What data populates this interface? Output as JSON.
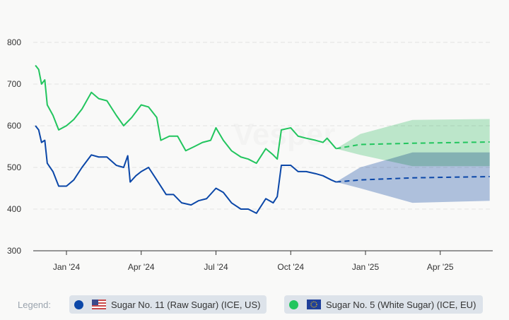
{
  "watermark": "Vesper",
  "chart_data": {
    "type": "line",
    "title": "",
    "xlabel": "",
    "ylabel": "",
    "ylim": [
      300,
      800
    ],
    "yticks": [
      "300",
      "400",
      "500",
      "600",
      "700",
      "800"
    ],
    "xticks": [
      {
        "label": "Jan '24",
        "date": "2024-01-01"
      },
      {
        "label": "Apr '24",
        "date": "2024-04-01"
      },
      {
        "label": "Jul '24",
        "date": "2024-07-01"
      },
      {
        "label": "Oct '24",
        "date": "2024-10-01"
      },
      {
        "label": "Jan '25",
        "date": "2025-01-01"
      },
      {
        "label": "Apr '25",
        "date": "2025-04-01"
      }
    ],
    "grid": true,
    "series": [
      {
        "name": "Sugar No. 11 (Raw Sugar) (ICE, US)",
        "color": "#0b47a8",
        "band_color": "#aec2e1",
        "x": [
          "2023-11-24",
          "2023-11-28",
          "2023-12-01",
          "2023-12-05",
          "2023-12-08",
          "2023-12-15",
          "2023-12-22",
          "2024-01-01",
          "2024-01-10",
          "2024-01-20",
          "2024-02-01",
          "2024-02-10",
          "2024-02-20",
          "2024-03-01",
          "2024-03-10",
          "2024-03-15",
          "2024-03-18",
          "2024-03-25",
          "2024-04-01",
          "2024-04-10",
          "2024-04-20",
          "2024-05-01",
          "2024-05-10",
          "2024-05-20",
          "2024-06-01",
          "2024-06-10",
          "2024-06-20",
          "2024-07-01",
          "2024-07-10",
          "2024-07-20",
          "2024-08-01",
          "2024-08-10",
          "2024-08-20",
          "2024-09-01",
          "2024-09-10",
          "2024-09-15",
          "2024-09-20",
          "2024-10-01",
          "2024-10-10",
          "2024-10-20",
          "2024-11-01",
          "2024-11-10",
          "2024-11-20",
          "2024-11-26"
        ],
        "values": [
          600,
          590,
          560,
          565,
          510,
          490,
          455,
          455,
          470,
          500,
          530,
          525,
          525,
          505,
          500,
          528,
          465,
          480,
          490,
          500,
          470,
          435,
          435,
          415,
          410,
          420,
          425,
          450,
          440,
          415,
          400,
          400,
          390,
          425,
          415,
          430,
          505,
          505,
          490,
          490,
          485,
          480,
          470,
          465
        ],
        "forecast": {
          "x": [
            "2024-11-26",
            "2024-12-25",
            "2025-02-28",
            "2025-05-31"
          ],
          "values": [
            465,
            470,
            475,
            478
          ],
          "upper": [
            465,
            500,
            536,
            536
          ],
          "lower": [
            465,
            450,
            415,
            420
          ]
        }
      },
      {
        "name": "Sugar No. 5 (White Sugar) (ICE, EU)",
        "color": "#22c55e",
        "band_color": "#b6e9c8",
        "x": [
          "2023-11-24",
          "2023-11-28",
          "2023-12-01",
          "2023-12-05",
          "2023-12-08",
          "2023-12-15",
          "2023-12-22",
          "2024-01-01",
          "2024-01-10",
          "2024-01-20",
          "2024-02-01",
          "2024-02-10",
          "2024-02-20",
          "2024-03-01",
          "2024-03-10",
          "2024-03-20",
          "2024-04-01",
          "2024-04-10",
          "2024-04-20",
          "2024-04-25",
          "2024-05-05",
          "2024-05-15",
          "2024-05-25",
          "2024-06-05",
          "2024-06-15",
          "2024-06-25",
          "2024-07-01",
          "2024-07-10",
          "2024-07-20",
          "2024-08-01",
          "2024-08-10",
          "2024-08-20",
          "2024-09-01",
          "2024-09-10",
          "2024-09-15",
          "2024-09-20",
          "2024-10-01",
          "2024-10-10",
          "2024-10-20",
          "2024-11-01",
          "2024-11-10",
          "2024-11-15",
          "2024-11-26"
        ],
        "values": [
          745,
          735,
          700,
          710,
          650,
          625,
          590,
          600,
          615,
          640,
          680,
          665,
          660,
          625,
          600,
          620,
          650,
          645,
          620,
          565,
          575,
          575,
          540,
          550,
          560,
          565,
          595,
          565,
          540,
          525,
          520,
          510,
          545,
          530,
          520,
          590,
          595,
          575,
          570,
          565,
          560,
          570,
          545
        ],
        "forecast": {
          "x": [
            "2024-11-26",
            "2024-12-25",
            "2025-02-28",
            "2025-05-31"
          ],
          "values": [
            545,
            555,
            558,
            561
          ],
          "upper": [
            545,
            580,
            614,
            616
          ],
          "lower": [
            545,
            530,
            503,
            503
          ]
        }
      }
    ],
    "legend_position": "bottom"
  },
  "legend": {
    "label": "Legend:",
    "items": [
      {
        "label": "Sugar No. 11 (Raw Sugar) (ICE, US)",
        "color": "#0b47a8",
        "flag": "us-flag-icon"
      },
      {
        "label": "Sugar No. 5 (White Sugar) (ICE, EU)",
        "color": "#22c55e",
        "flag": "eu-flag-icon"
      }
    ]
  }
}
